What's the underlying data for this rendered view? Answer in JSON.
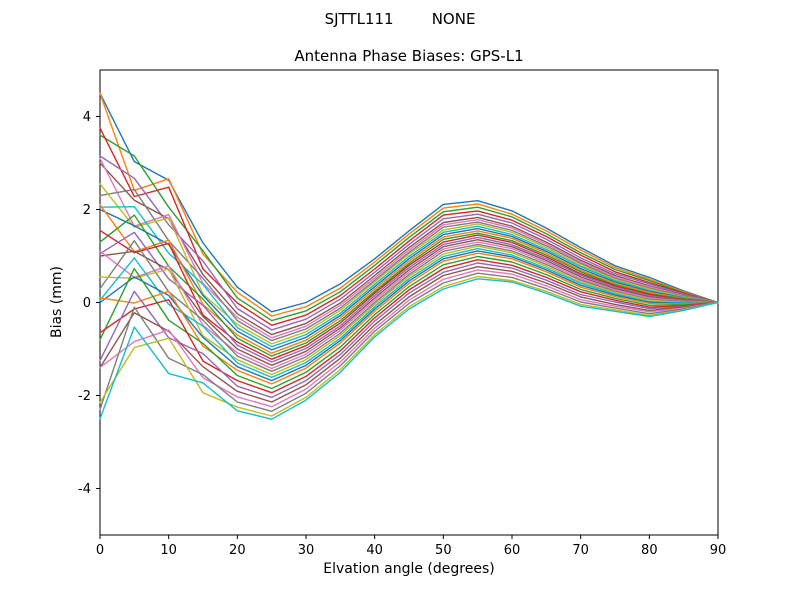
{
  "chart_data": {
    "type": "line",
    "suptitle": "SJTTL111        NONE",
    "title": "Antenna Phase Biases: GPS-L1",
    "xlabel": "Elvation angle (degrees)",
    "ylabel": "Bias (mm)",
    "xlim": [
      0,
      90
    ],
    "ylim": [
      -5,
      5
    ],
    "xticks": [
      0,
      10,
      20,
      30,
      40,
      50,
      60,
      70,
      80,
      90
    ],
    "yticks": [
      -4,
      -2,
      0,
      2,
      4
    ],
    "grid": false,
    "legend_position": "none",
    "x": [
      0,
      5,
      10,
      15,
      20,
      25,
      30,
      35,
      40,
      45,
      50,
      55,
      60,
      65,
      70,
      75,
      80,
      85,
      90
    ],
    "series": [
      {
        "color": "#1f77b4",
        "values": [
          4.5,
          3.03,
          2.63,
          1.28,
          0.33,
          -0.2,
          0.0,
          0.4,
          0.94,
          1.54,
          2.11,
          2.19,
          1.97,
          1.6,
          1.18,
          0.79,
          0.54,
          0.25,
          0.0
        ]
      },
      {
        "color": "#ff7f0e",
        "values": [
          4.5,
          2.41,
          2.66,
          1.04,
          0.22,
          -0.29,
          -0.09,
          0.31,
          0.87,
          1.47,
          2.03,
          2.12,
          1.9,
          1.54,
          1.13,
          0.75,
          0.5,
          0.23,
          0.0
        ]
      },
      {
        "color": "#2ca02c",
        "values": [
          3.6,
          3.15,
          2.05,
          1.11,
          0.1,
          -0.39,
          -0.18,
          0.23,
          0.8,
          1.4,
          1.95,
          2.05,
          1.84,
          1.48,
          1.07,
          0.71,
          0.47,
          0.21,
          0.0
        ]
      },
      {
        "color": "#d62728",
        "values": [
          3.75,
          2.28,
          2.48,
          0.72,
          -0.01,
          -0.49,
          -0.27,
          0.15,
          0.72,
          1.32,
          1.88,
          1.97,
          1.77,
          1.42,
          1.02,
          0.66,
          0.43,
          0.2,
          0.0
        ]
      },
      {
        "color": "#9467bd",
        "values": [
          3.15,
          2.67,
          1.67,
          0.89,
          -0.13,
          -0.59,
          -0.36,
          0.07,
          0.65,
          1.25,
          1.8,
          1.9,
          1.71,
          1.36,
          0.96,
          0.62,
          0.4,
          0.18,
          0.0
        ]
      },
      {
        "color": "#8c564b",
        "values": [
          3.0,
          2.2,
          1.8,
          0.6,
          -0.24,
          -0.69,
          -0.45,
          -0.01,
          0.58,
          1.18,
          1.72,
          1.83,
          1.64,
          1.3,
          0.91,
          0.58,
          0.36,
          0.16,
          0.0
        ]
      },
      {
        "color": "#e377c2",
        "values": [
          3.1,
          1.64,
          1.89,
          0.41,
          -0.32,
          -0.76,
          -0.51,
          -0.06,
          0.53,
          1.13,
          1.67,
          1.78,
          1.6,
          1.26,
          0.87,
          0.55,
          0.34,
          0.15,
          0.0
        ]
      },
      {
        "color": "#7f7f7f",
        "values": [
          2.3,
          2.43,
          1.33,
          0.52,
          -0.39,
          -0.82,
          -0.57,
          -0.12,
          0.48,
          1.08,
          1.62,
          1.73,
          1.55,
          1.22,
          0.84,
          0.52,
          0.31,
          0.14,
          0.0
        ]
      },
      {
        "color": "#bcbd22",
        "values": [
          2.55,
          1.62,
          1.82,
          0.18,
          -0.47,
          -0.89,
          -0.63,
          -0.17,
          0.44,
          1.04,
          1.56,
          1.69,
          1.51,
          1.18,
          0.8,
          0.5,
          0.29,
          0.12,
          0.0
        ]
      },
      {
        "color": "#17becf",
        "values": [
          2.05,
          2.06,
          1.06,
          0.39,
          -0.54,
          -0.95,
          -0.69,
          -0.23,
          0.39,
          0.99,
          1.51,
          1.64,
          1.46,
          1.14,
          0.77,
          0.47,
          0.26,
          0.11,
          0.0
        ]
      },
      {
        "color": "#1f77b4",
        "values": [
          2.0,
          1.65,
          1.25,
          0.15,
          -0.62,
          -1.02,
          -0.75,
          -0.28,
          0.34,
          0.94,
          1.46,
          1.59,
          1.42,
          1.1,
          0.73,
          0.44,
          0.24,
          0.1,
          0.0
        ]
      },
      {
        "color": "#ff7f0e",
        "values": [
          2.1,
          1.09,
          1.34,
          -0.04,
          -0.7,
          -1.09,
          -0.81,
          -0.33,
          0.29,
          0.89,
          1.41,
          1.54,
          1.38,
          1.06,
          0.69,
          0.41,
          0.22,
          0.09,
          0.0
        ]
      },
      {
        "color": "#2ca02c",
        "values": [
          1.3,
          1.88,
          0.78,
          0.07,
          -0.77,
          -1.15,
          -0.87,
          -0.39,
          0.24,
          0.84,
          1.36,
          1.49,
          1.33,
          1.02,
          0.66,
          0.38,
          0.19,
          0.08,
          0.0
        ]
      },
      {
        "color": "#d62728",
        "values": [
          1.55,
          1.07,
          1.27,
          -0.27,
          -0.85,
          -1.22,
          -0.93,
          -0.44,
          0.2,
          0.8,
          1.3,
          1.45,
          1.29,
          0.98,
          0.62,
          0.36,
          0.17,
          0.06,
          0.0
        ]
      },
      {
        "color": "#9467bd",
        "values": [
          1.05,
          1.51,
          0.51,
          -0.06,
          -0.92,
          -1.28,
          -0.99,
          -0.5,
          0.15,
          0.75,
          1.25,
          1.4,
          1.24,
          0.94,
          0.59,
          0.33,
          0.14,
          0.05,
          0.0
        ]
      },
      {
        "color": "#8c564b",
        "values": [
          1.0,
          1.1,
          0.7,
          -0.3,
          -1.0,
          -1.35,
          -1.05,
          -0.55,
          0.1,
          0.7,
          1.2,
          1.35,
          1.2,
          0.9,
          0.55,
          0.3,
          0.12,
          0.04,
          0.0
        ]
      },
      {
        "color": "#e377c2",
        "values": [
          1.1,
          0.54,
          0.79,
          -0.49,
          -1.08,
          -1.42,
          -1.11,
          -0.6,
          0.05,
          0.65,
          1.15,
          1.3,
          1.16,
          0.86,
          0.51,
          0.27,
          0.1,
          0.03,
          0.0
        ]
      },
      {
        "color": "#7f7f7f",
        "values": [
          0.3,
          1.33,
          0.23,
          -0.38,
          -1.15,
          -1.48,
          -1.17,
          -0.66,
          0.0,
          0.6,
          1.1,
          1.25,
          1.11,
          0.82,
          0.48,
          0.24,
          0.07,
          0.02,
          0.0
        ]
      },
      {
        "color": "#bcbd22",
        "values": [
          0.55,
          0.52,
          0.72,
          -0.72,
          -1.23,
          -1.55,
          -1.23,
          -0.71,
          -0.04,
          0.56,
          1.04,
          1.21,
          1.07,
          0.78,
          0.44,
          0.22,
          0.05,
          0.0,
          0.0
        ]
      },
      {
        "color": "#17becf",
        "values": [
          0.05,
          0.96,
          -0.04,
          -0.51,
          -1.3,
          -1.61,
          -1.29,
          -0.77,
          -0.09,
          0.51,
          0.99,
          1.16,
          1.02,
          0.74,
          0.41,
          0.19,
          0.02,
          -0.01,
          0.0
        ]
      },
      {
        "color": "#1f77b4",
        "values": [
          0.0,
          0.55,
          0.15,
          -0.75,
          -1.38,
          -1.68,
          -1.35,
          -0.82,
          -0.14,
          0.46,
          0.94,
          1.11,
          0.98,
          0.7,
          0.37,
          0.16,
          0.0,
          -0.02,
          0.0
        ]
      },
      {
        "color": "#ff7f0e",
        "values": [
          0.1,
          -0.01,
          0.24,
          -0.94,
          -1.46,
          -1.75,
          -1.41,
          -0.87,
          -0.19,
          0.41,
          0.89,
          1.06,
          0.94,
          0.66,
          0.33,
          0.13,
          -0.02,
          -0.03,
          0.0
        ]
      },
      {
        "color": "#2ca02c",
        "values": [
          -0.8,
          0.73,
          -0.38,
          -0.88,
          -1.57,
          -1.85,
          -1.5,
          -0.96,
          -0.26,
          0.34,
          0.81,
          0.99,
          0.87,
          0.6,
          0.28,
          0.09,
          -0.06,
          -0.05,
          0.0
        ]
      },
      {
        "color": "#d62728",
        "values": [
          -0.65,
          -0.14,
          0.06,
          -1.26,
          -1.68,
          -1.94,
          -1.59,
          -1.04,
          -0.33,
          0.27,
          0.73,
          0.92,
          0.8,
          0.54,
          0.23,
          0.05,
          -0.1,
          -0.07,
          0.0
        ]
      },
      {
        "color": "#9467bd",
        "values": [
          -1.25,
          0.24,
          -0.76,
          -1.1,
          -1.8,
          -2.04,
          -1.68,
          -1.12,
          -0.4,
          0.2,
          0.65,
          0.85,
          0.74,
          0.48,
          0.17,
          0.01,
          -0.13,
          -0.09,
          0.0
        ]
      },
      {
        "color": "#8c564b",
        "values": [
          -1.4,
          -0.22,
          -0.62,
          -1.38,
          -1.91,
          -2.14,
          -1.77,
          -1.2,
          -0.48,
          0.12,
          0.58,
          0.77,
          0.67,
          0.42,
          0.12,
          -0.04,
          -0.17,
          -0.1,
          0.0
        ]
      },
      {
        "color": "#e377c2",
        "values": [
          -1.4,
          -0.84,
          -0.59,
          -1.62,
          -2.03,
          -2.24,
          -1.86,
          -1.28,
          -0.55,
          0.05,
          0.5,
          0.7,
          0.61,
          0.36,
          0.06,
          -0.08,
          -0.2,
          -0.12,
          0.0
        ]
      },
      {
        "color": "#7f7f7f",
        "values": [
          -2.3,
          -0.1,
          -1.2,
          -1.55,
          -2.14,
          -2.34,
          -1.95,
          -1.36,
          -0.62,
          -0.02,
          0.42,
          0.63,
          0.54,
          0.3,
          0.01,
          -0.12,
          -0.24,
          -0.14,
          0.0
        ]
      },
      {
        "color": "#bcbd22",
        "values": [
          -2.15,
          -0.97,
          -0.77,
          -1.94,
          -2.25,
          -2.44,
          -2.04,
          -1.44,
          -0.69,
          -0.09,
          0.34,
          0.56,
          0.47,
          0.24,
          -0.04,
          -0.16,
          -0.28,
          -0.16,
          0.0
        ]
      },
      {
        "color": "#17becf",
        "values": [
          -2.5,
          -0.53,
          -1.53,
          -1.73,
          -2.33,
          -2.51,
          -2.1,
          -1.5,
          -0.74,
          -0.14,
          0.29,
          0.51,
          0.44,
          0.2,
          -0.08,
          -0.19,
          -0.3,
          -0.17,
          0.0
        ]
      }
    ]
  }
}
